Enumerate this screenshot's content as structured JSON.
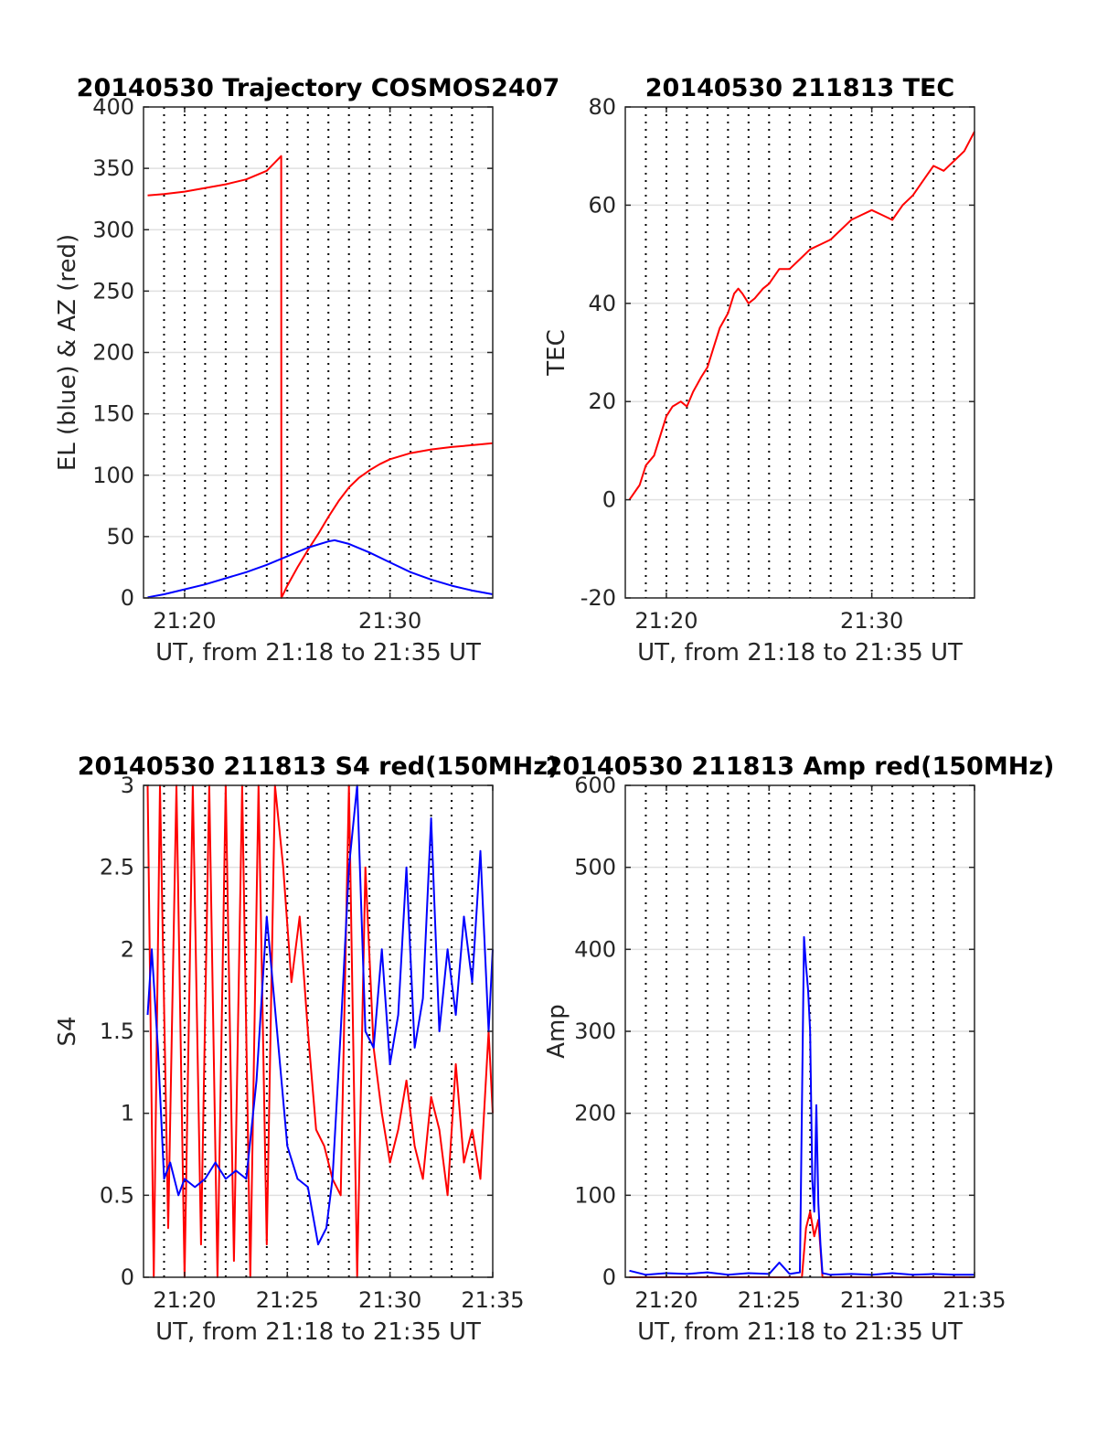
{
  "chart_data": [
    {
      "type": "line",
      "title": "20140530 Trajectory COSMOS2407",
      "xlabel": "UT, from 21:18 to 21:35 UT",
      "ylabel": "EL (blue) & AZ (red)",
      "xlim": [
        1278,
        1295
      ],
      "ylim": [
        0,
        400
      ],
      "xticks": [
        {
          "value": 1280,
          "label": "21:20"
        },
        {
          "value": 1290,
          "label": "21:30"
        }
      ],
      "yticks": [
        {
          "value": 0,
          "label": "0"
        },
        {
          "value": 50,
          "label": "50"
        },
        {
          "value": 100,
          "label": "100"
        },
        {
          "value": 150,
          "label": "150"
        },
        {
          "value": 200,
          "label": "200"
        },
        {
          "value": 250,
          "label": "250"
        },
        {
          "value": 300,
          "label": "300"
        },
        {
          "value": 350,
          "label": "350"
        },
        {
          "value": 400,
          "label": "400"
        }
      ],
      "grid": true,
      "series": [
        {
          "color": "#ff0000",
          "x": [
            1278.2,
            1279,
            1280,
            1281,
            1282,
            1283,
            1284,
            1284.7,
            1284.71,
            1285,
            1285.5,
            1286,
            1286.5,
            1287,
            1287.5,
            1288,
            1288.5,
            1289,
            1289.5,
            1290,
            1291,
            1292,
            1293,
            1294,
            1295
          ],
          "values": [
            328,
            329,
            331,
            334,
            337,
            341,
            348,
            360,
            0,
            10,
            25,
            39,
            52,
            66,
            79,
            90,
            98,
            104,
            109,
            113,
            118,
            121,
            123,
            124.5,
            126
          ]
        },
        {
          "color": "#0000ff",
          "x": [
            1278.2,
            1279,
            1280,
            1281,
            1282,
            1283,
            1284,
            1285,
            1286,
            1287,
            1287.3,
            1288,
            1289,
            1290,
            1291,
            1292,
            1293,
            1294,
            1295
          ],
          "values": [
            0.5,
            3,
            7,
            11,
            16,
            21,
            27,
            34,
            41,
            46,
            47,
            44,
            37,
            29,
            21,
            15,
            10,
            6,
            3
          ]
        }
      ]
    },
    {
      "type": "line",
      "title": "20140530 211813 TEC",
      "xlabel": "UT, from 21:18 to 21:35 UT",
      "ylabel": "TEC",
      "xlim": [
        1278,
        1295
      ],
      "ylim": [
        -20,
        80
      ],
      "xticks": [
        {
          "value": 1280,
          "label": "21:20"
        },
        {
          "value": 1290,
          "label": "21:30"
        }
      ],
      "yticks": [
        {
          "value": -20,
          "label": "-20"
        },
        {
          "value": 0,
          "label": "0"
        },
        {
          "value": 20,
          "label": "20"
        },
        {
          "value": 40,
          "label": "40"
        },
        {
          "value": 60,
          "label": "60"
        },
        {
          "value": 80,
          "label": "80"
        }
      ],
      "grid": true,
      "series": [
        {
          "color": "#ff0000",
          "x": [
            1278.2,
            1278.7,
            1279,
            1279.4,
            1279.7,
            1280,
            1280.3,
            1280.7,
            1281,
            1281.3,
            1281.7,
            1282,
            1282.3,
            1282.6,
            1283,
            1283.3,
            1283.5,
            1283.7,
            1284,
            1284.3,
            1284.7,
            1285,
            1285.5,
            1286,
            1286.5,
            1287,
            1287.5,
            1288,
            1288.5,
            1289,
            1289.5,
            1290,
            1290.5,
            1291,
            1291.5,
            1292,
            1292.5,
            1293,
            1293.5,
            1294,
            1294.5,
            1295
          ],
          "values": [
            0,
            3,
            7,
            9,
            13,
            17,
            19,
            20,
            19,
            22,
            25,
            27,
            31,
            35,
            38,
            42,
            43,
            42,
            40,
            41,
            43,
            44,
            47,
            47,
            49,
            51,
            52,
            53,
            55,
            57,
            58,
            59,
            58,
            57,
            60,
            62,
            65,
            68,
            67,
            69,
            71,
            75
          ]
        }
      ]
    },
    {
      "type": "line",
      "title": "20140530 211813 S4 red(150MHz)",
      "xlabel": "UT, from 21:18 to 21:35 UT",
      "ylabel": "S4",
      "xlim": [
        1278,
        1295
      ],
      "ylim": [
        0,
        3
      ],
      "xticks": [
        {
          "value": 1280,
          "label": "21:20"
        },
        {
          "value": 1285,
          "label": "21:25"
        },
        {
          "value": 1290,
          "label": "21:30"
        },
        {
          "value": 1295,
          "label": "21:35"
        }
      ],
      "yticks": [
        {
          "value": 0,
          "label": "0"
        },
        {
          "value": 0.5,
          "label": "0.5"
        },
        {
          "value": 1,
          "label": "1"
        },
        {
          "value": 1.5,
          "label": "1.5"
        },
        {
          "value": 2,
          "label": "2"
        },
        {
          "value": 2.5,
          "label": "2.5"
        },
        {
          "value": 3,
          "label": "3"
        }
      ],
      "grid": true,
      "series": [
        {
          "color": "#ff0000",
          "x": [
            1278.2,
            1278.5,
            1278.8,
            1279.2,
            1279.6,
            1280,
            1280.4,
            1280.8,
            1281.2,
            1281.6,
            1282,
            1282.4,
            1282.8,
            1283.2,
            1283.6,
            1284,
            1284.4,
            1284.8,
            1285.2,
            1285.6,
            1286,
            1286.4,
            1286.8,
            1287.2,
            1287.6,
            1288,
            1288.4,
            1288.8,
            1289.2,
            1289.6,
            1290,
            1290.4,
            1290.8,
            1291.2,
            1291.6,
            1292,
            1292.4,
            1292.8,
            1293.2,
            1293.6,
            1294,
            1294.4,
            1294.8,
            1295
          ],
          "values": [
            3,
            0,
            3,
            0.3,
            3,
            0,
            3,
            0.2,
            3,
            0,
            3,
            0.1,
            3,
            0,
            3,
            0.2,
            3,
            2.5,
            1.8,
            2.2,
            1.5,
            0.9,
            0.8,
            0.6,
            0.5,
            3,
            0,
            2.5,
            1.4,
            1.0,
            0.7,
            0.9,
            1.2,
            0.8,
            0.6,
            1.1,
            0.9,
            0.5,
            1.3,
            0.7,
            0.9,
            0.6,
            1.5,
            1.0
          ]
        },
        {
          "color": "#0000ff",
          "x": [
            1278.2,
            1278.4,
            1278.7,
            1279,
            1279.3,
            1279.7,
            1280,
            1280.5,
            1281,
            1281.5,
            1282,
            1282.5,
            1283,
            1283.5,
            1284,
            1284.5,
            1285,
            1285.5,
            1286,
            1286.5,
            1286.9,
            1287.2,
            1287.6,
            1288,
            1288.4,
            1288.8,
            1289.2,
            1289.6,
            1290,
            1290.4,
            1290.8,
            1291.2,
            1291.6,
            1292,
            1292.4,
            1292.8,
            1293.2,
            1293.6,
            1294,
            1294.4,
            1294.8,
            1295
          ],
          "values": [
            1.6,
            2.0,
            1.4,
            0.6,
            0.7,
            0.5,
            0.6,
            0.55,
            0.6,
            0.7,
            0.6,
            0.65,
            0.6,
            1.2,
            2.2,
            1.5,
            0.8,
            0.6,
            0.55,
            0.2,
            0.3,
            0.6,
            1.5,
            2.5,
            3,
            1.5,
            1.4,
            2.0,
            1.3,
            1.6,
            2.5,
            1.4,
            1.7,
            2.8,
            1.5,
            2.0,
            1.6,
            2.2,
            1.8,
            2.6,
            1.5,
            2.0
          ]
        }
      ]
    },
    {
      "type": "line",
      "title": "20140530 211813 Amp red(150MHz)",
      "xlabel": "UT, from 21:18 to 21:35 UT",
      "ylabel": "Amp",
      "xlim": [
        1278,
        1295
      ],
      "ylim": [
        0,
        600
      ],
      "xticks": [
        {
          "value": 1280,
          "label": "21:20"
        },
        {
          "value": 1285,
          "label": "21:25"
        },
        {
          "value": 1290,
          "label": "21:30"
        },
        {
          "value": 1295,
          "label": "21:35"
        }
      ],
      "yticks": [
        {
          "value": 0,
          "label": "0"
        },
        {
          "value": 100,
          "label": "100"
        },
        {
          "value": 200,
          "label": "200"
        },
        {
          "value": 300,
          "label": "300"
        },
        {
          "value": 400,
          "label": "400"
        },
        {
          "value": 500,
          "label": "500"
        },
        {
          "value": 600,
          "label": "600"
        }
      ],
      "grid": true,
      "series": [
        {
          "color": "#ff0000",
          "x": [
            1278.2,
            1286,
            1286.6,
            1286.8,
            1287,
            1287.2,
            1287.4,
            1287.6,
            1295
          ],
          "values": [
            0,
            0,
            0,
            60,
            80,
            50,
            70,
            0,
            0
          ]
        },
        {
          "color": "#0000ff",
          "x": [
            1278.2,
            1279,
            1280,
            1281,
            1282,
            1283,
            1284,
            1285,
            1285.5,
            1286,
            1286.5,
            1286.7,
            1286.8,
            1286.9,
            1287,
            1287.1,
            1287.2,
            1287.3,
            1287.4,
            1287.5,
            1287.6,
            1288,
            1289,
            1290,
            1291,
            1292,
            1293,
            1294,
            1295
          ],
          "values": [
            8,
            3,
            5,
            4,
            6,
            3,
            5,
            4,
            18,
            4,
            6,
            415,
            380,
            350,
            300,
            120,
            80,
            210,
            90,
            40,
            5,
            3,
            4,
            3,
            5,
            3,
            4,
            3,
            3
          ]
        }
      ]
    }
  ]
}
